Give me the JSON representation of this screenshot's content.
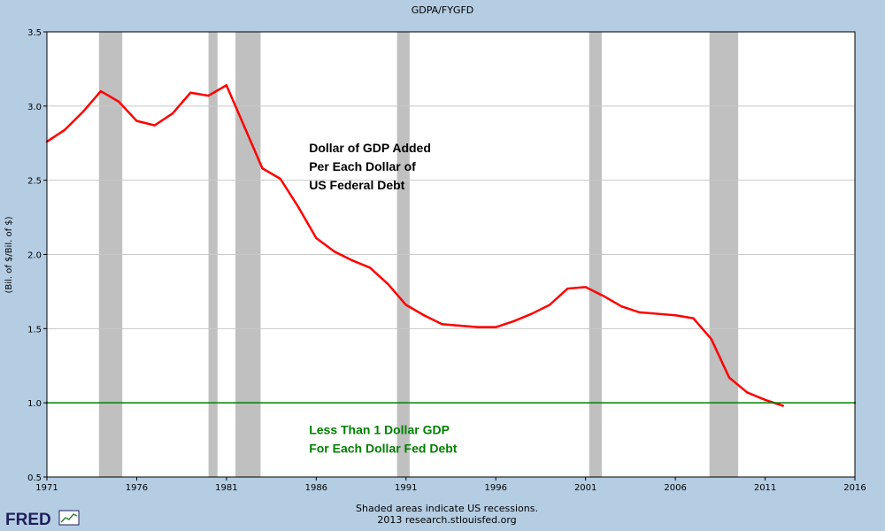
{
  "chart_data": {
    "type": "line",
    "title": "GDPA/FYGFD",
    "xlabel": "",
    "ylabel": "(Bil. of $/Bil. of $)",
    "xlim": [
      1971,
      2016
    ],
    "ylim": [
      0.5,
      3.5
    ],
    "x_ticks": [
      "1971",
      "1976",
      "1981",
      "1986",
      "1991",
      "1996",
      "2001",
      "2006",
      "2011",
      "2016"
    ],
    "y_ticks": [
      "0.5",
      "1.0",
      "1.5",
      "2.0",
      "2.5",
      "3.0",
      "3.5"
    ],
    "grid": true,
    "series": [
      {
        "color": "#ff0000",
        "x": [
          1971,
          1972,
          1973,
          1974,
          1975,
          1976,
          1977,
          1978,
          1979,
          1980,
          1981,
          1982,
          1983,
          1984,
          1985,
          1986,
          1987,
          1988,
          1989,
          1990,
          1991,
          1992,
          1993,
          1994,
          1995,
          1996,
          1997,
          1998,
          1999,
          2000,
          2001,
          2002,
          2003,
          2004,
          2005,
          2006,
          2007,
          2008,
          2009,
          2010,
          2011,
          2012
        ],
        "values": [
          2.76,
          2.84,
          2.96,
          3.1,
          3.03,
          2.9,
          2.87,
          2.95,
          3.09,
          3.07,
          3.14,
          2.86,
          2.58,
          2.51,
          2.32,
          2.11,
          2.02,
          1.96,
          1.91,
          1.8,
          1.66,
          1.59,
          1.53,
          1.52,
          1.51,
          1.51,
          1.55,
          1.6,
          1.66,
          1.77,
          1.78,
          1.72,
          1.65,
          1.61,
          1.6,
          1.59,
          1.57,
          1.43,
          1.17,
          1.07,
          1.02,
          0.98
        ]
      },
      {
        "color": "#008000",
        "x": [
          1971,
          2016
        ],
        "values": [
          1.0,
          1.0
        ]
      }
    ],
    "recessions": [
      [
        1973.9,
        1975.2
      ],
      [
        1980.0,
        1980.5
      ],
      [
        1981.5,
        1982.9
      ],
      [
        1990.5,
        1991.2
      ],
      [
        2001.2,
        2001.9
      ],
      [
        2007.9,
        2009.5
      ]
    ],
    "recession_color": "#c0c0c0",
    "annotations": [
      {
        "lines": [
          "Dollar of GDP Added",
          "Per Each Dollar of",
          "US Federal Debt"
        ],
        "color": "#000000",
        "x": 1985.6,
        "y": 2.69
      },
      {
        "lines": [
          "Less Than 1 Dollar GDP",
          "For Each Dollar Fed Debt"
        ],
        "color": "#008000",
        "x": 1985.6,
        "y": 0.79
      }
    ]
  },
  "footer": {
    "line1": "Shaded areas indicate US recessions.",
    "line2": "2013 research.stlouisfed.org"
  },
  "logo": {
    "text": "FRED"
  }
}
